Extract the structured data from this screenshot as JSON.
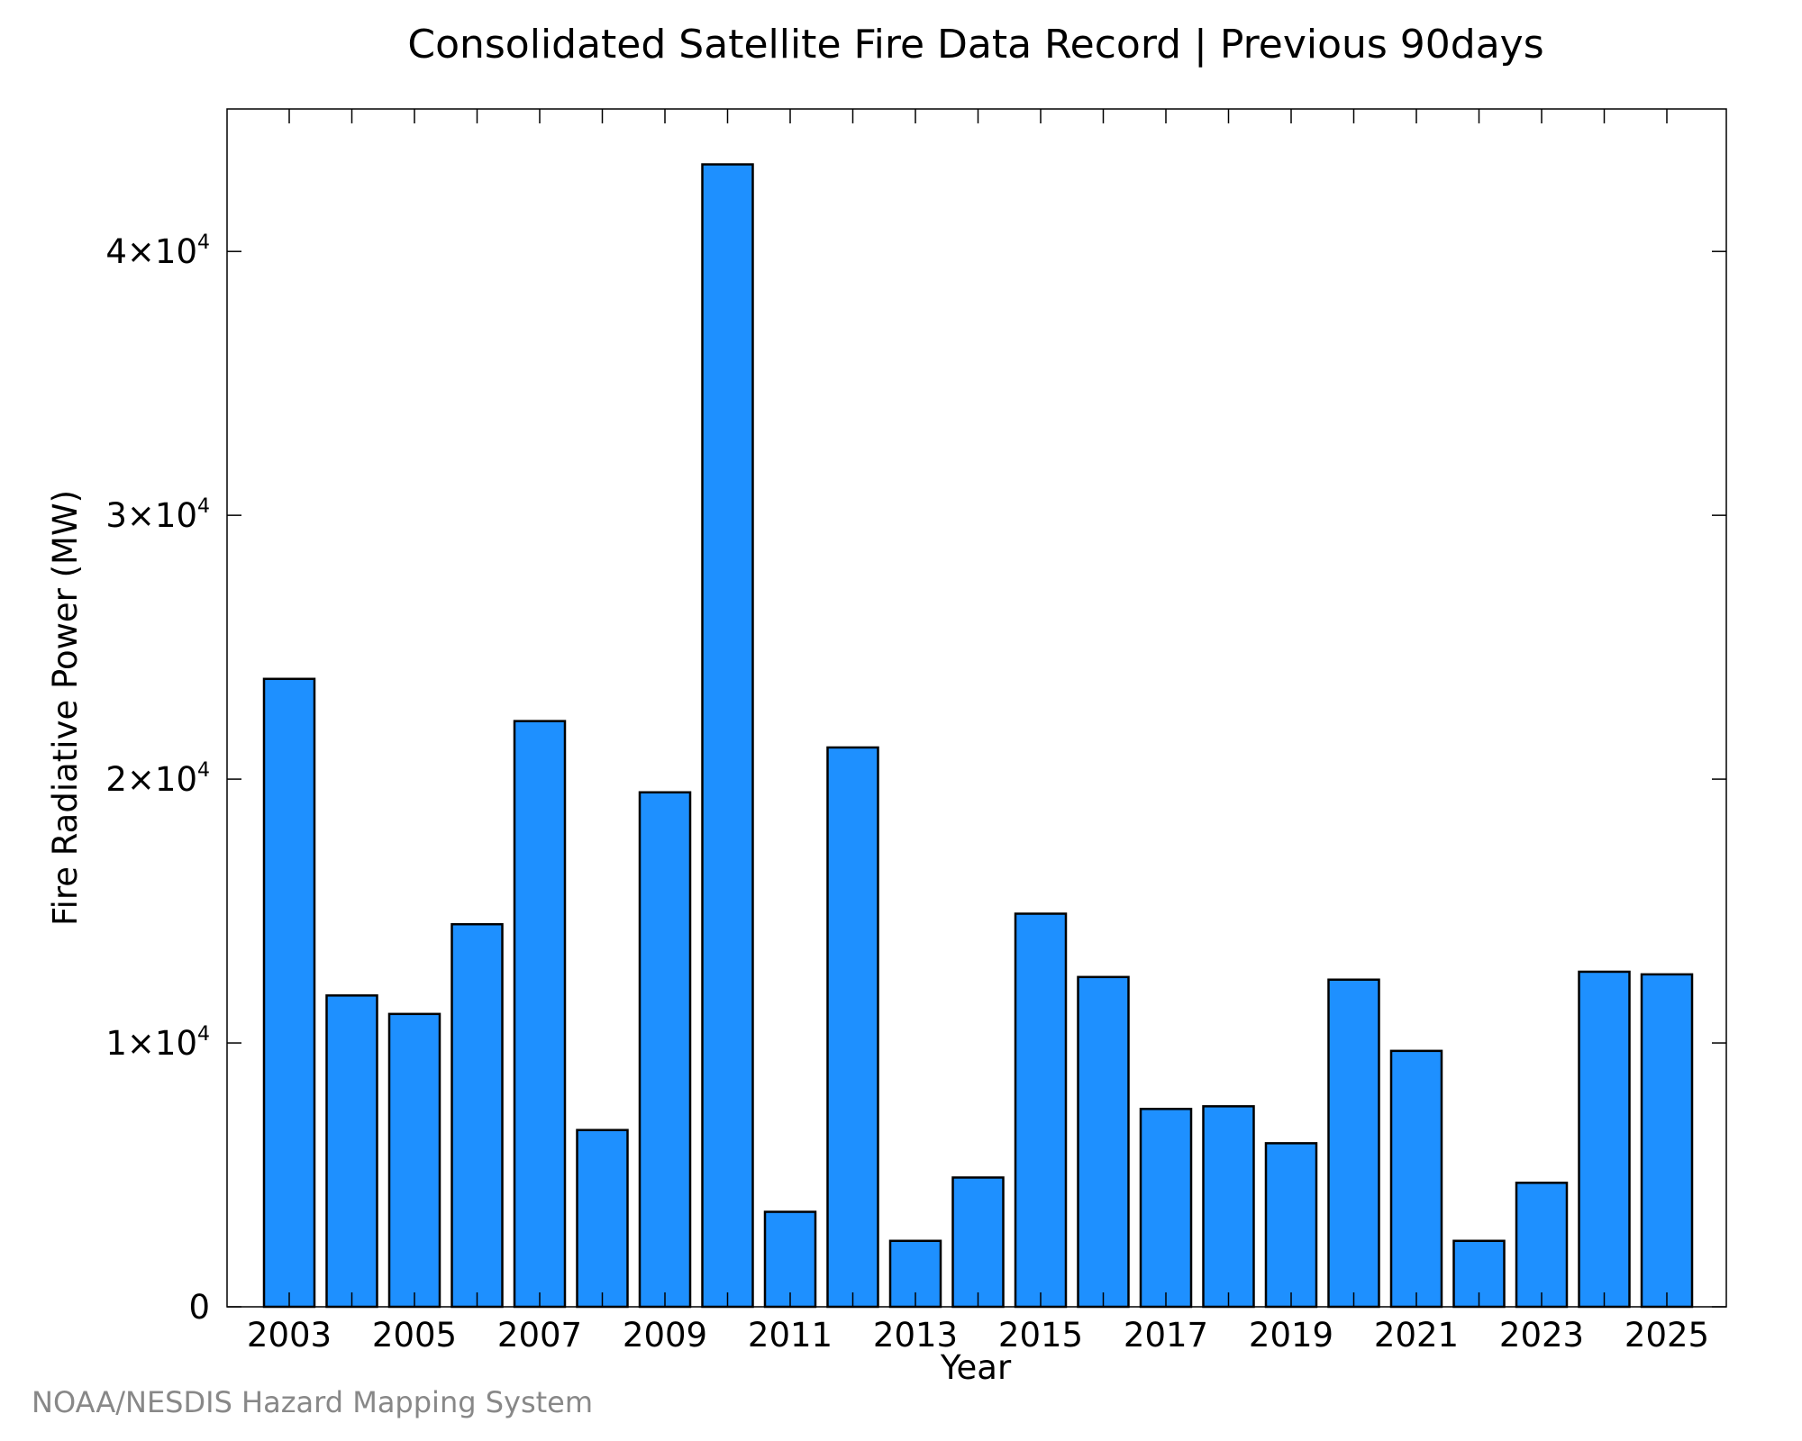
{
  "chart_data": {
    "type": "bar",
    "title": "Consolidated Satellite Fire Data Record | Previous 90days",
    "xlabel": "Year",
    "ylabel": "Fire Radiative Power (MW)",
    "categories": [
      "2003",
      "2004",
      "2005",
      "2006",
      "2007",
      "2008",
      "2009",
      "2010",
      "2011",
      "2012",
      "2013",
      "2014",
      "2015",
      "2016",
      "2017",
      "2018",
      "2019",
      "2020",
      "2021",
      "2022",
      "2023",
      "2024",
      "2025"
    ],
    "values": [
      23800,
      11800,
      11100,
      14500,
      22200,
      6700,
      19500,
      43300,
      3600,
      21200,
      2500,
      4900,
      14900,
      12500,
      7500,
      7600,
      6200,
      12400,
      9700,
      2500,
      4700,
      12700,
      12600
    ],
    "x_tick_labels": [
      "2003",
      "2005",
      "2007",
      "2009",
      "2011",
      "2013",
      "2015",
      "2017",
      "2019",
      "2021",
      "2023",
      "2025"
    ],
    "y_ticks": [
      {
        "value": 0,
        "mantissa": "0",
        "exponent": ""
      },
      {
        "value": 10000,
        "mantissa": "1×10",
        "exponent": "4"
      },
      {
        "value": 20000,
        "mantissa": "2×10",
        "exponent": "4"
      },
      {
        "value": 30000,
        "mantissa": "3×10",
        "exponent": "4"
      },
      {
        "value": 40000,
        "mantissa": "4×10",
        "exponent": "4"
      }
    ],
    "ylim": [
      0,
      45400
    ],
    "bar_color": "#1e90ff",
    "bar_edge_color": "#000000",
    "grid": false,
    "legend": "none"
  },
  "credit": "NOAA/NESDIS Hazard Mapping System"
}
